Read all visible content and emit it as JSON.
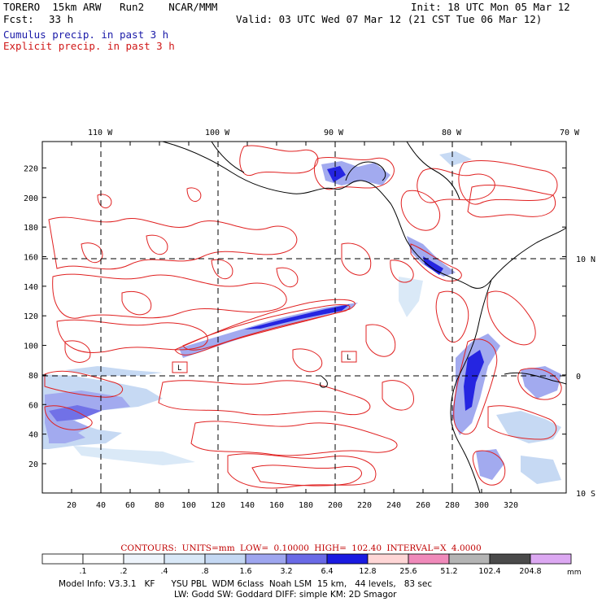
{
  "header": {
    "model_line": "TORERO  15km ARW   Run2    NCAR/MMM",
    "init": "Init: 18 UTC Mon 05 Mar 12",
    "fcst_label": "Fcst:",
    "fcst_value": "33 h",
    "valid": "Valid: 03 UTC Wed 07 Mar 12 (21 CST Tue 06 Mar 12)",
    "field1": "Cumulus precip. in past 3 h",
    "field2": "Explicit precip. in past 3 h"
  },
  "colors": {
    "cumulus_text": "#1a1aa8",
    "explicit_text": "#d01818",
    "contour": "#e02020",
    "coast": "#000000"
  },
  "map": {
    "lon_labels": [
      "110 W",
      "100 W",
      "90 W",
      "80 W",
      "70 W"
    ],
    "lat_labels": [
      "10 N",
      "0",
      "10 S"
    ],
    "y_ticks": [
      "20",
      "40",
      "60",
      "80",
      "100",
      "120",
      "140",
      "160",
      "180",
      "200",
      "220"
    ],
    "x_ticks": [
      "20",
      "40",
      "60",
      "80",
      "100",
      "120",
      "140",
      "160",
      "180",
      "200",
      "220",
      "240",
      "260",
      "280",
      "300",
      "320"
    ],
    "low_markers": [
      "L",
      "L"
    ]
  },
  "contour_info": "CONTOURS:  UNITS=mm  LOW= 0.10000     HIGH= 102.40     INTERVAL=X  4.0000",
  "colorbar": {
    "levels": [
      ".1",
      ".2",
      ".4",
      ".8",
      "1.6",
      "3.2",
      "6.4",
      "12.8",
      "25.6",
      "51.2",
      "102.4",
      "204.8"
    ],
    "unit": "mm",
    "colors": [
      "#ffffff",
      "#ffffff",
      "#eef4fb",
      "#d9e8f7",
      "#c4d8f3",
      "#9ea6ef",
      "#6a6ae6",
      "#1a1ae0",
      "#ffd6d6",
      "#f08aba",
      "#b4b4b4",
      "#4a4a4a",
      "#dca8f2"
    ]
  },
  "footer": {
    "line1": "Model Info: V3.3.1   KF      YSU PBL  WDM 6class  Noah LSM  15 km,   44 levels,   83 sec",
    "line2": "LW: Godd SW: Goddard DIFF: simple KM: 2D Smagor"
  }
}
